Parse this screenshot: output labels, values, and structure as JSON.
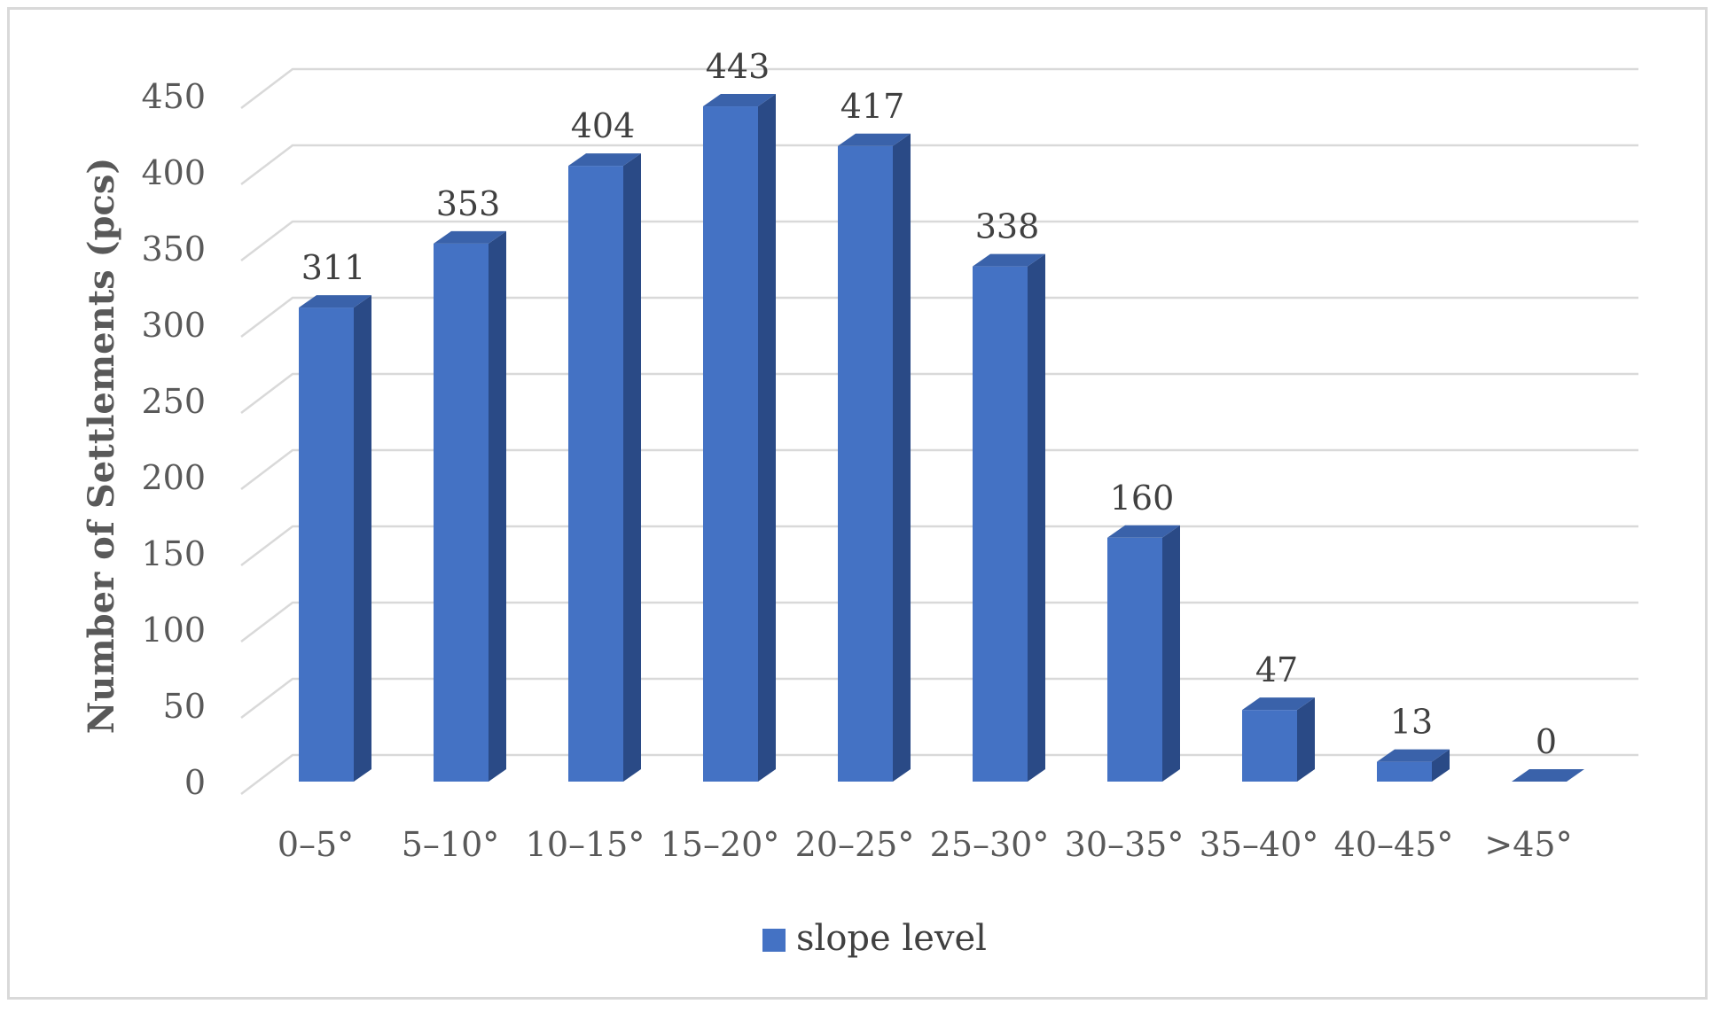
{
  "chart_data": {
    "type": "bar",
    "style": "3d-column",
    "categories": [
      "0–5°",
      "5–10°",
      "10–15°",
      "15–20°",
      "20–25°",
      "25–30°",
      "30–35°",
      "35–40°",
      "40–45°",
      ">45°"
    ],
    "series": [
      {
        "name": "slope level",
        "values": [
          311,
          353,
          404,
          443,
          417,
          338,
          160,
          47,
          13,
          0
        ]
      }
    ],
    "title": "",
    "xlabel": "",
    "ylabel": "Number of Settlements (pcs)",
    "ylim": [
      0,
      450
    ],
    "yticks": [
      0,
      50,
      100,
      150,
      200,
      250,
      300,
      350,
      400,
      450
    ],
    "grid": true,
    "legend": "bottom",
    "data_labels": true,
    "colors": {
      "front": "#4472c4",
      "side": "#2a4a86",
      "top": "#3a62aa",
      "grid": "#d9d9d9"
    }
  }
}
